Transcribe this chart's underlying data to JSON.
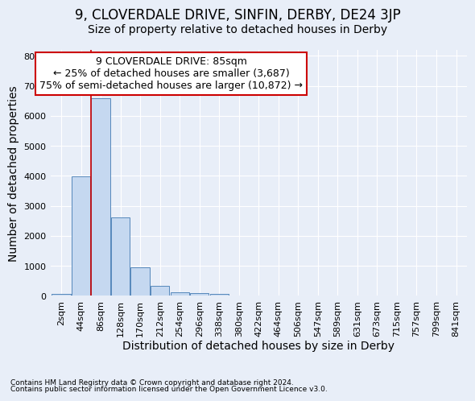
{
  "title": "9, CLOVERDALE DRIVE, SINFIN, DERBY, DE24 3JP",
  "subtitle": "Size of property relative to detached houses in Derby",
  "xlabel": "Distribution of detached houses by size in Derby",
  "ylabel": "Number of detached properties",
  "footnote1": "Contains HM Land Registry data © Crown copyright and database right 2024.",
  "footnote2": "Contains public sector information licensed under the Open Government Licence v3.0.",
  "categories": [
    "2sqm",
    "44sqm",
    "86sqm",
    "128sqm",
    "170sqm",
    "212sqm",
    "254sqm",
    "296sqm",
    "338sqm",
    "380sqm",
    "422sqm",
    "464sqm",
    "506sqm",
    "547sqm",
    "589sqm",
    "631sqm",
    "673sqm",
    "715sqm",
    "757sqm",
    "799sqm",
    "841sqm"
  ],
  "bar_heights": [
    55,
    3980,
    6600,
    2620,
    960,
    325,
    130,
    80,
    55,
    20,
    0,
    0,
    0,
    0,
    0,
    0,
    0,
    0,
    0,
    0,
    0
  ],
  "bar_color": "#c5d8f0",
  "bar_edge_color": "#5588bb",
  "annotation_text": "9 CLOVERDALE DRIVE: 85sqm\n← 25% of detached houses are smaller (3,687)\n75% of semi-detached houses are larger (10,872) →",
  "annotation_box_color": "#ffffff",
  "annotation_box_edge_color": "#cc0000",
  "property_line_x": 2.0,
  "ylim": [
    0,
    8200
  ],
  "yticks": [
    0,
    1000,
    2000,
    3000,
    4000,
    5000,
    6000,
    7000,
    8000
  ],
  "background_color": "#e8eef8",
  "grid_color": "#ffffff",
  "title_fontsize": 12,
  "subtitle_fontsize": 10,
  "axis_label_fontsize": 10,
  "tick_fontsize": 8,
  "annotation_fontsize": 9
}
